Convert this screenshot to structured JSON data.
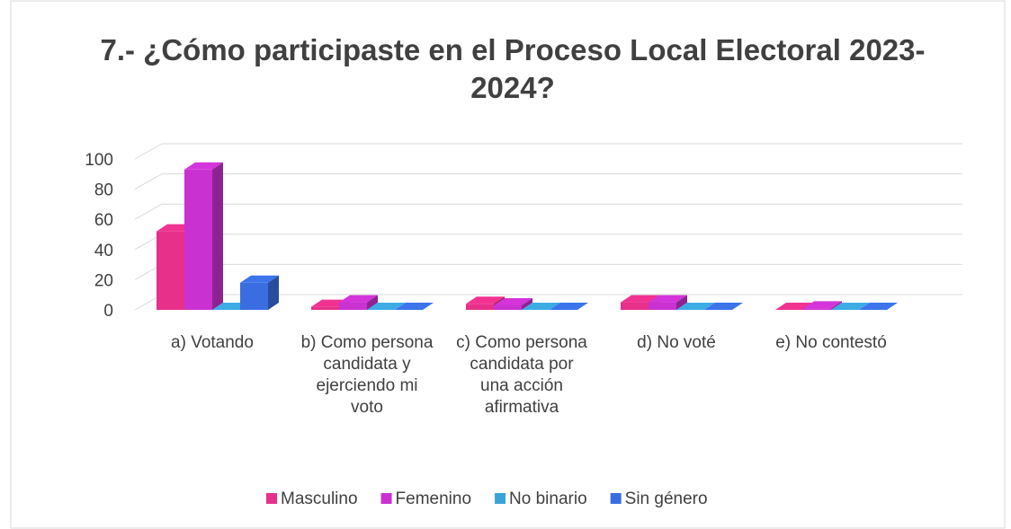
{
  "chart_data": {
    "type": "bar3d",
    "title": "7.- ¿Cómo participaste en el Proceso Local Electoral 2023-2024?",
    "categories": [
      "a) Votando",
      "b) Como persona candidata y ejerciendo mi voto",
      "c) Como persona candidata por una acción afirmativa",
      "d) No voté",
      "e) No contestó"
    ],
    "series": [
      {
        "name": "Masculino",
        "color": "#e6308a",
        "values": [
          52,
          2,
          4,
          5,
          0
        ]
      },
      {
        "name": "Femenino",
        "color": "#c932d0",
        "values": [
          93,
          5,
          3,
          5,
          1
        ]
      },
      {
        "name": "No binario",
        "color": "#3aa3d9",
        "values": [
          0,
          0,
          0,
          0,
          0
        ]
      },
      {
        "name": "Sin género",
        "color": "#3a6ee0",
        "values": [
          18,
          0,
          0,
          0,
          0
        ]
      }
    ],
    "ylim": [
      0,
      100
    ],
    "yticks": [
      0,
      20,
      40,
      60,
      80,
      100
    ],
    "grid": true,
    "legend": "bottom"
  }
}
